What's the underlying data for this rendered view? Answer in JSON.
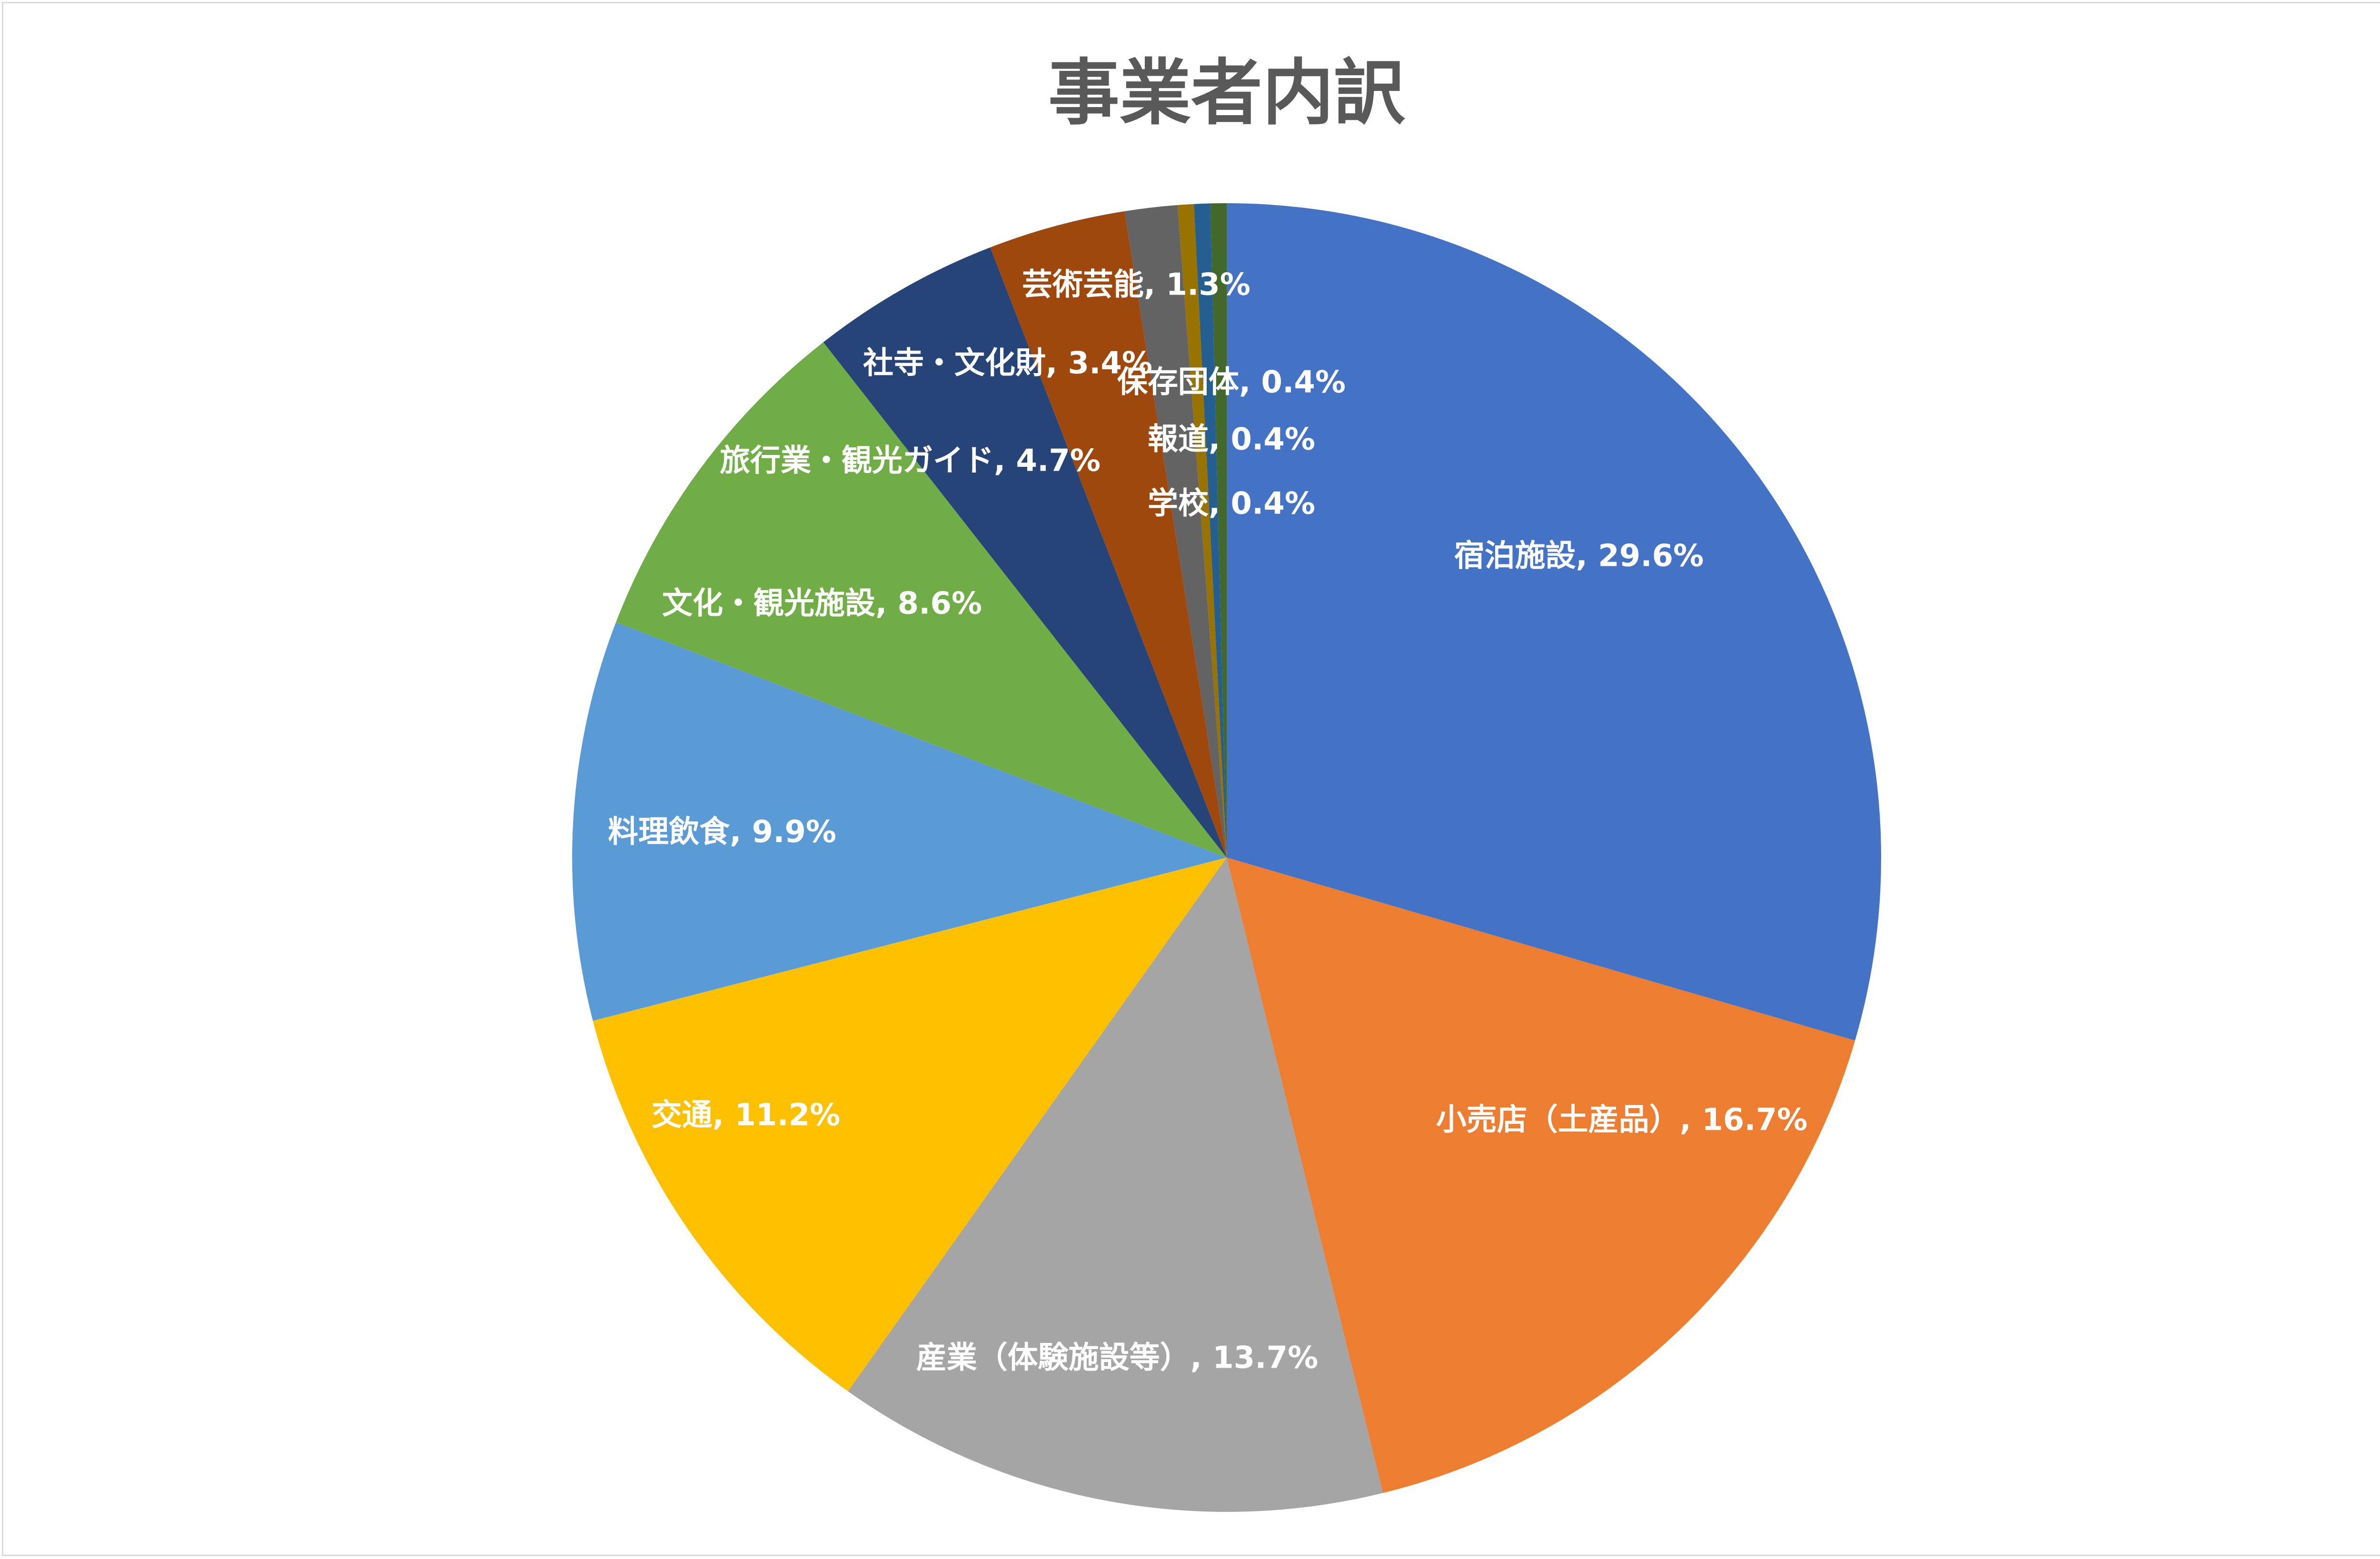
{
  "chart_data": {
    "type": "pie",
    "title": "事業者内訳",
    "label_separator": ", ",
    "start_angle_deg": 0,
    "direction": "clockwise",
    "legend": "none",
    "slices": [
      {
        "name": "宿泊施設",
        "value": 29.6,
        "label": "29.6%",
        "color": "#4472C4"
      },
      {
        "name": "小売店（土産品）",
        "value": 16.7,
        "label": "16.7%",
        "color": "#ED7D31"
      },
      {
        "name": "産業（体験施設等）",
        "value": 13.7,
        "label": "13.7%",
        "color": "#A5A5A5"
      },
      {
        "name": "交通",
        "value": 11.2,
        "label": "11.2%",
        "color": "#FFC000"
      },
      {
        "name": "料理飲食",
        "value": 9.9,
        "label": "9.9%",
        "color": "#5B9BD5"
      },
      {
        "name": "文化・観光施設",
        "value": 8.6,
        "label": "8.6%",
        "color": "#70AD47"
      },
      {
        "name": "旅行業・観光ガイド",
        "value": 4.7,
        "label": "4.7%",
        "color": "#264478"
      },
      {
        "name": "社寺・文化財",
        "value": 3.4,
        "label": "3.4%",
        "color": "#9E480E"
      },
      {
        "name": "芸術芸能",
        "value": 1.3,
        "label": "1.3%",
        "color": "#636363"
      },
      {
        "name": "保存団体",
        "value": 0.4,
        "label": "0.4%",
        "color": "#997300"
      },
      {
        "name": "報道",
        "value": 0.4,
        "label": "0.4%",
        "color": "#255E91"
      },
      {
        "name": "学校",
        "value": 0.4,
        "label": "0.4%",
        "color": "#43682B"
      }
    ]
  }
}
